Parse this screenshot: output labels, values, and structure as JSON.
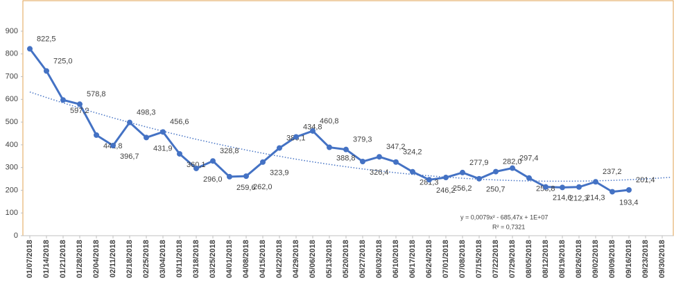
{
  "chart_data": {
    "type": "line",
    "categories": [
      "01/07/2018",
      "01/14/2018",
      "01/21/2018",
      "01/28/2018",
      "02/04/2018",
      "02/11/2018",
      "02/18/2018",
      "02/25/2018",
      "03/04/2018",
      "03/11/2018",
      "03/18/2018",
      "03/25/2018",
      "04/01/2018",
      "04/08/2018",
      "04/15/2018",
      "04/22/2018",
      "04/29/2018",
      "05/06/2018",
      "05/13/2018",
      "05/20/2018",
      "05/27/2018",
      "06/03/2018",
      "06/10/2018",
      "06/17/2018",
      "06/24/2018",
      "07/01/2018",
      "07/08/2018",
      "07/15/2018",
      "07/22/2018",
      "07/29/2018",
      "08/05/2018",
      "08/12/2018",
      "08/19/2018",
      "08/26/2018",
      "09/02/2018",
      "09/09/2018",
      "09/16/2018",
      "09/23/2018",
      "09/30/2018"
    ],
    "series": [
      {
        "color": "#4472c4",
        "values": [
          822.5,
          725.0,
          597.2,
          578.8,
          442.8,
          396.7,
          498.3,
          431.9,
          456.6,
          360.1,
          296.0,
          328.8,
          259.6,
          262.0,
          323.9,
          386.1,
          434.8,
          460.8,
          388.8,
          379.3,
          326.4,
          347.2,
          324.2,
          281.3,
          246.2,
          256.2,
          277.9,
          250.7,
          282.0,
          297.4,
          253.8,
          214.6,
          212.3,
          214.3,
          237.2,
          193.4,
          201.4,
          null,
          null
        ],
        "value_labels": [
          "822,5",
          "725,0",
          "597,2",
          "578,8",
          "442,8",
          "396,7",
          "498,3",
          "431,9",
          "456,6",
          "360,1",
          "296,0",
          "328,8",
          "259,6",
          "262,0",
          "323,9",
          "386,1",
          "434,8",
          "460,8",
          "388,8",
          "379,3",
          "326,4",
          "347,2",
          "324,2",
          "281,3",
          "246,2",
          "256,2",
          "277,9",
          "250,7",
          "282,0",
          "297,4",
          "253,8",
          "214,6",
          "212,3",
          "214,3",
          "237,2",
          "193,4",
          "201,4",
          null,
          null
        ]
      }
    ],
    "ylim": [
      0,
      900
    ],
    "yticks": [
      0,
      100,
      200,
      300,
      400,
      500,
      600,
      700,
      800,
      900
    ],
    "grid": false,
    "trendline": "polynomial",
    "trendline_color": "#4472c4",
    "annotations": [
      "y = 0,0079x² - 685,47x + 1E+07",
      "R² = 0,7321"
    ]
  }
}
